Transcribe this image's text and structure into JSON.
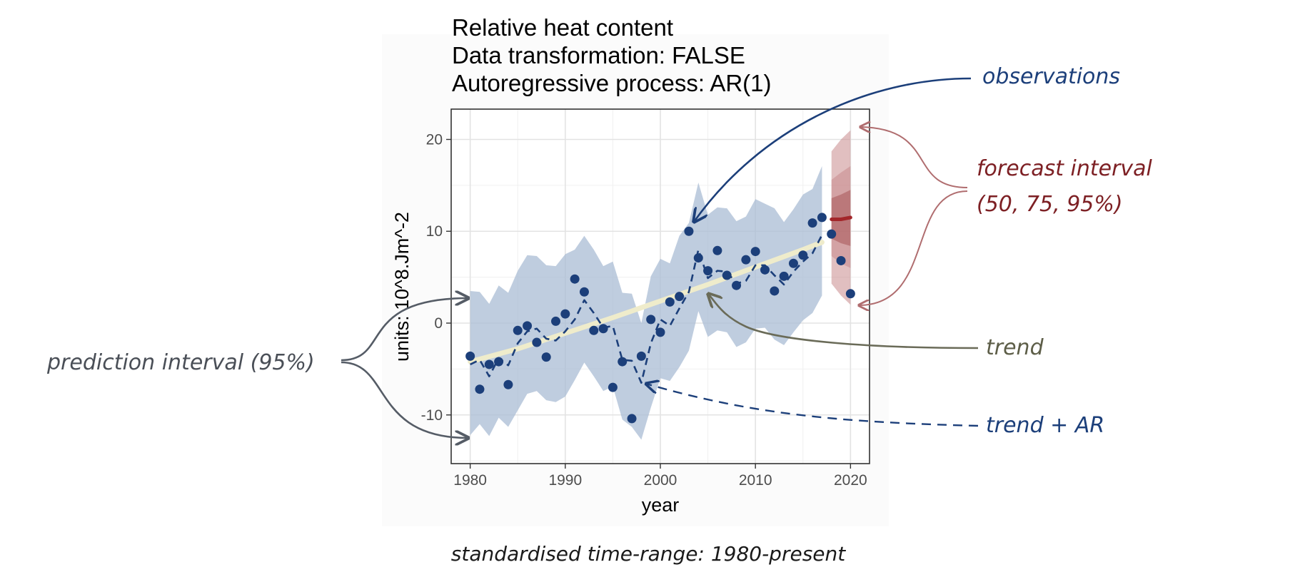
{
  "chart_data": {
    "type": "line",
    "title_lines": [
      "Relative heat content",
      "Data transformation: FALSE",
      "Autoregressive process: AR(1)"
    ],
    "xlabel": "year",
    "ylabel": "units: 10^8.Jm^-2",
    "xlim": [
      1978,
      2022
    ],
    "ylim": [
      -15.3,
      23.3
    ],
    "x_ticks": [
      1980,
      1990,
      2000,
      2010,
      2020
    ],
    "y_ticks": [
      -10,
      0,
      10,
      20
    ],
    "grid": true,
    "colors": {
      "observations": "#1c3f7a",
      "trend_ar": "#1c3f7a",
      "trend": "#efeccb",
      "prediction_interval": "#a9bcd4",
      "forecast": "#a3262a",
      "forecast_interval": "#c98a8c"
    },
    "observations": {
      "x": [
        1980,
        1981,
        1982,
        1983,
        1984,
        1985,
        1986,
        1987,
        1988,
        1989,
        1990,
        1991,
        1992,
        1993,
        1994,
        1995,
        1996,
        1997,
        1998,
        1999,
        2000,
        2001,
        2002,
        2003,
        2004,
        2005,
        2006,
        2007,
        2008,
        2009,
        2010,
        2011,
        2012,
        2013,
        2014,
        2015,
        2016,
        2017,
        2018,
        2019,
        2020
      ],
      "y": [
        -3.6,
        -7.2,
        -4.5,
        -4.2,
        -6.7,
        -0.8,
        -0.3,
        -2.1,
        -3.7,
        0.2,
        1.0,
        4.8,
        3.4,
        -0.8,
        -0.6,
        -7.0,
        -4.2,
        -10.4,
        -3.6,
        0.4,
        -1.0,
        2.3,
        2.9,
        10.0,
        7.1,
        5.7,
        7.9,
        5.2,
        4.1,
        6.9,
        7.8,
        5.8,
        3.5,
        5.1,
        6.5,
        7.4,
        10.9,
        11.5,
        9.7,
        6.8,
        3.2
      ]
    },
    "trend": {
      "x": [
        1980,
        1985,
        1990,
        1995,
        2000,
        2005,
        2010,
        2015,
        2017
      ],
      "y": [
        -4.2,
        -2.8,
        -1.1,
        0.6,
        2.4,
        4.2,
        6.1,
        8.0,
        8.8
      ]
    },
    "trend_ar": {
      "x": [
        1980,
        1981,
        1982,
        1983,
        1984,
        1985,
        1986,
        1987,
        1988,
        1989,
        1990,
        1991,
        1992,
        1993,
        1994,
        1995,
        1996,
        1997,
        1998,
        1999,
        2000,
        2001,
        2002,
        2003,
        2004,
        2005,
        2006,
        2007,
        2008,
        2009,
        2010,
        2011,
        2012,
        2013,
        2014,
        2015,
        2016,
        2017
      ],
      "y": [
        -4.5,
        -4.0,
        -5.8,
        -3.8,
        -4.6,
        -2.2,
        -0.9,
        -0.6,
        -1.7,
        -1.9,
        -0.9,
        0.4,
        2.5,
        1.1,
        -0.5,
        -0.3,
        -4.0,
        -4.1,
        -6.5,
        -2.2,
        0.4,
        -0.3,
        1.6,
        3.4,
        8.0,
        4.9,
        5.7,
        5.6,
        4.3,
        4.6,
        6.3,
        6.3,
        5.2,
        4.2,
        5.6,
        6.7,
        7.6,
        9.6
      ]
    },
    "prediction_interval_95": {
      "x": [
        1980,
        1981,
        1982,
        1983,
        1984,
        1985,
        1986,
        1987,
        1988,
        1989,
        1990,
        1991,
        1992,
        1993,
        1994,
        1995,
        1996,
        1997,
        1998,
        1999,
        2000,
        2001,
        2002,
        2003,
        2004,
        2005,
        2006,
        2007,
        2008,
        2009,
        2010,
        2011,
        2012,
        2013,
        2014,
        2015,
        2016,
        2017
      ],
      "lower": [
        -12.2,
        -11.0,
        -12.3,
        -10.3,
        -11.3,
        -9.5,
        -7.7,
        -7.4,
        -8.4,
        -8.6,
        -8.0,
        -6.2,
        -4.3,
        -5.8,
        -7.4,
        -6.9,
        -10.5,
        -11.3,
        -12.7,
        -9.2,
        -6.0,
        -6.3,
        -4.8,
        -3.0,
        1.3,
        -1.5,
        -0.8,
        -1.0,
        -2.6,
        -2.1,
        -0.6,
        -0.5,
        -1.8,
        -2.4,
        -1.0,
        0.3,
        1.1,
        3.0
      ],
      "upper": [
        3.5,
        3.4,
        2.1,
        4.1,
        3.3,
        5.7,
        7.4,
        7.3,
        6.3,
        6.2,
        7.5,
        8.0,
        9.5,
        8.0,
        6.2,
        6.7,
        3.3,
        3.2,
        0.0,
        5.1,
        7.0,
        6.5,
        9.5,
        10.9,
        15.3,
        11.8,
        12.6,
        12.5,
        11.1,
        11.6,
        13.5,
        13.0,
        12.5,
        11.0,
        12.4,
        14.0,
        14.6,
        17.1
      ]
    },
    "forecast": {
      "x": [
        2018,
        2019,
        2020
      ],
      "y": [
        11.3,
        11.3,
        11.5
      ]
    },
    "forecast_interval": {
      "x": [
        2018,
        2019,
        2020
      ],
      "lower_95": [
        4.3,
        3.0,
        2.0
      ],
      "upper_95": [
        18.7,
        20.0,
        21.0
      ],
      "lower_75": [
        7.3,
        6.5,
        6.0
      ],
      "upper_75": [
        15.6,
        16.4,
        17.1
      ],
      "lower_50": [
        9.2,
        8.7,
        8.4
      ],
      "upper_50": [
        13.6,
        14.0,
        14.5
      ]
    }
  },
  "annotations": {
    "observations": "observations",
    "forecast_interval_line1": "forecast interval",
    "forecast_interval_line2": "(50, 75, 95%)",
    "trend": "trend",
    "trend_ar": "trend + AR",
    "prediction_interval": "prediction interval (95%)",
    "footer": "standardised time-range: 1980-present",
    "color_observations": "#1c3f7a",
    "color_forecast": "#7d2024",
    "color_trend": "#5d5e48",
    "color_trend_ar": "#1c3f7a",
    "color_prediction": "#4a4f57"
  }
}
